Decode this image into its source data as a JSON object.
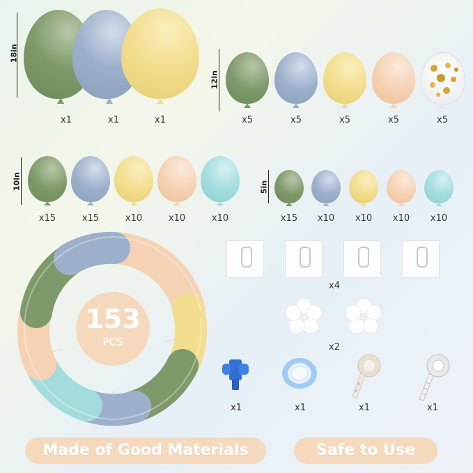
{
  "colors": {
    "sage": "#7f9a6a",
    "blue": "#9db0cb",
    "yellow": "#f2de8e",
    "peach": "#f5d2b3",
    "teal": "#a4dcdd",
    "pill_bg": "#f4d9bd"
  },
  "group_18in": {
    "size_label": "18in",
    "quantities": [
      "x1",
      "x1",
      "x1"
    ]
  },
  "group_12in": {
    "size_label": "12in",
    "quantities": [
      "x5",
      "x5",
      "x5",
      "x5",
      "x5"
    ]
  },
  "group_10in": {
    "size_label": "10in",
    "quantities": [
      "x15",
      "x15",
      "x10",
      "x10",
      "x10"
    ]
  },
  "group_5in": {
    "size_label": "5in",
    "quantities": [
      "x15",
      "x10",
      "x10",
      "x10",
      "x10"
    ]
  },
  "wreath": {
    "count": "153",
    "unit": "PCS"
  },
  "accessories": {
    "hooks_qty": "x4",
    "clips_qty": "x2",
    "tool_qty": "x1",
    "ribbon_qty": "x1",
    "dots_qty": "x1",
    "strip_qty": "x1"
  },
  "badges": {
    "left": "Made of Good Materials",
    "right": "Safe to Use"
  }
}
